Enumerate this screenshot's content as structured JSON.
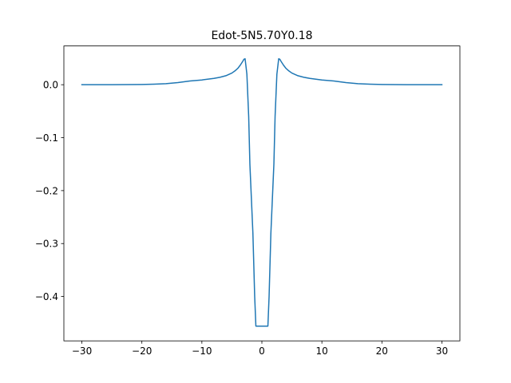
{
  "chart_data": {
    "type": "line",
    "title": "Edot-5N5.70Y0.18",
    "xlabel": "",
    "ylabel": "",
    "xlim": [
      -33,
      33
    ],
    "ylim": [
      -0.4838,
      0.0732
    ],
    "grid": false,
    "xticks": [
      -30,
      -20,
      -10,
      0,
      10,
      20,
      30
    ],
    "xtick_labels": [
      "−30",
      "−20",
      "−10",
      "0",
      "10",
      "20",
      "30"
    ],
    "yticks": [
      0.0,
      -0.1,
      -0.2,
      -0.3,
      -0.4
    ],
    "ytick_labels": [
      "0.0",
      "−0.1",
      "−0.2",
      "−0.3",
      "−0.4"
    ],
    "series": [
      {
        "color": "#1f77b4",
        "x": [
          -30,
          -25,
          -20,
          -18,
          -16,
          -14,
          -12,
          -10,
          -8,
          -7,
          -6,
          -5,
          -4.5,
          -4,
          -3.6,
          -3.2,
          -3.0,
          -2.8,
          -2.5,
          -2.2,
          -2.0,
          -1.5,
          -1.2,
          -1.0,
          1.0,
          1.2,
          1.5,
          2.0,
          2.2,
          2.5,
          2.8,
          3.0,
          3.2,
          3.6,
          4,
          4.5,
          5,
          6,
          7,
          8,
          10,
          12,
          14,
          16,
          18,
          20,
          25,
          30
        ],
        "y": [
          0.0,
          0.0,
          0.0005,
          0.001,
          0.002,
          0.004,
          0.007,
          0.009,
          0.012,
          0.014,
          0.017,
          0.022,
          0.026,
          0.031,
          0.037,
          0.044,
          0.048,
          0.049,
          0.02,
          -0.06,
          -0.15,
          -0.28,
          -0.4,
          -0.456,
          -0.456,
          -0.4,
          -0.28,
          -0.15,
          -0.06,
          0.02,
          0.049,
          0.048,
          0.044,
          0.037,
          0.031,
          0.026,
          0.022,
          0.017,
          0.014,
          0.012,
          0.009,
          0.007,
          0.004,
          0.002,
          0.001,
          0.0005,
          0.0,
          0.0
        ]
      }
    ]
  }
}
